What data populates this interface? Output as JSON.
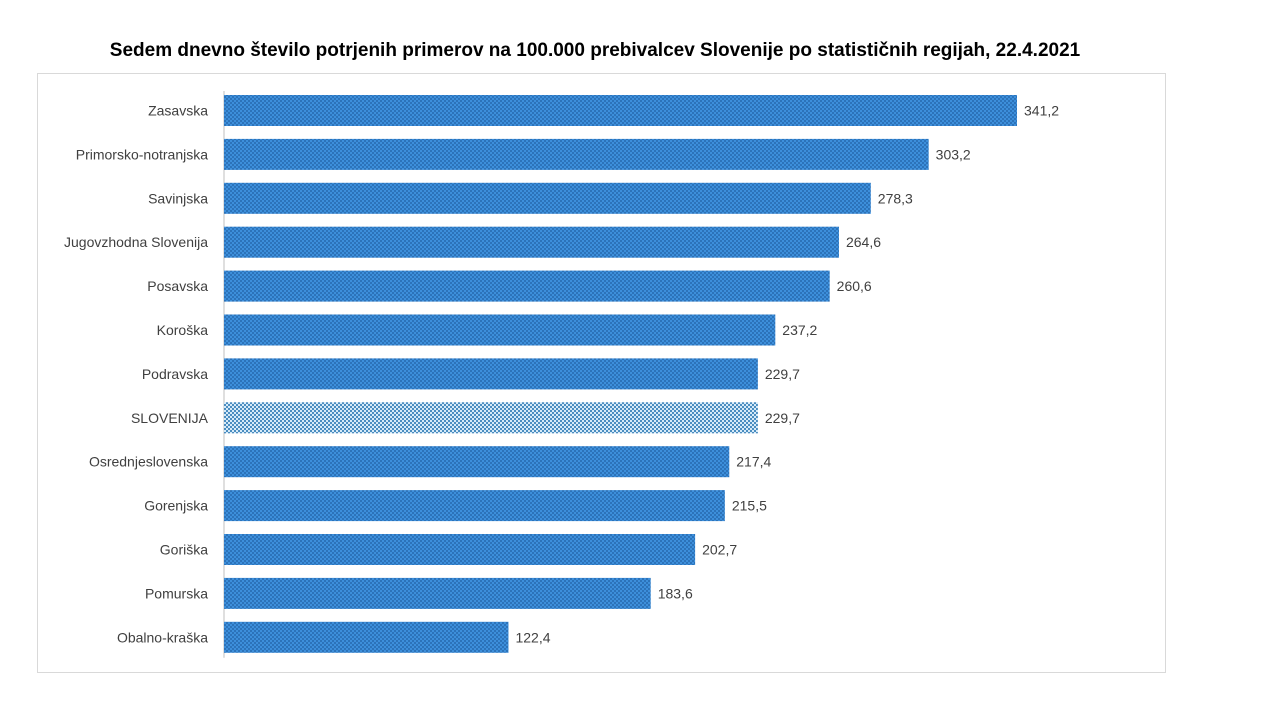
{
  "chart_data": {
    "type": "bar",
    "orientation": "horizontal",
    "title": "Sedem dnevno število potrjenih primerov na 100.000  prebivalcev Slovenije po statističnih regijah, 22.4.2021",
    "categories": [
      "Zasavska",
      "Primorsko-notranjska",
      "Savinjska",
      "Jugovzhodna Slovenija",
      "Posavska",
      "Koroška",
      "Podravska",
      "SLOVENIJA",
      "Osrednjeslovenska",
      "Gorenjska",
      "Goriška",
      "Pomurska",
      "Obalno-kraška"
    ],
    "values": [
      341.2,
      303.2,
      278.3,
      264.6,
      260.6,
      237.2,
      229.7,
      229.7,
      217.4,
      215.5,
      202.7,
      183.6,
      122.4
    ],
    "value_labels": [
      "341,2",
      "303,2",
      "278,3",
      "264,6",
      "260,6",
      "237,2",
      "229,7",
      "229,7",
      "217,4",
      "215,5",
      "202,7",
      "183,6",
      "122,4"
    ],
    "highlight_category": "SLOVENIJA",
    "xlim": [
      0,
      341.2
    ],
    "grid": false,
    "legend": "none",
    "colors": {
      "bar": "#3d8fdb",
      "bar_dots": "#1f5fa3",
      "highlight": "#d6eaf8",
      "highlight_dots": "#1f6fae",
      "axis": "#bfbfbf",
      "text": "#404040"
    }
  }
}
